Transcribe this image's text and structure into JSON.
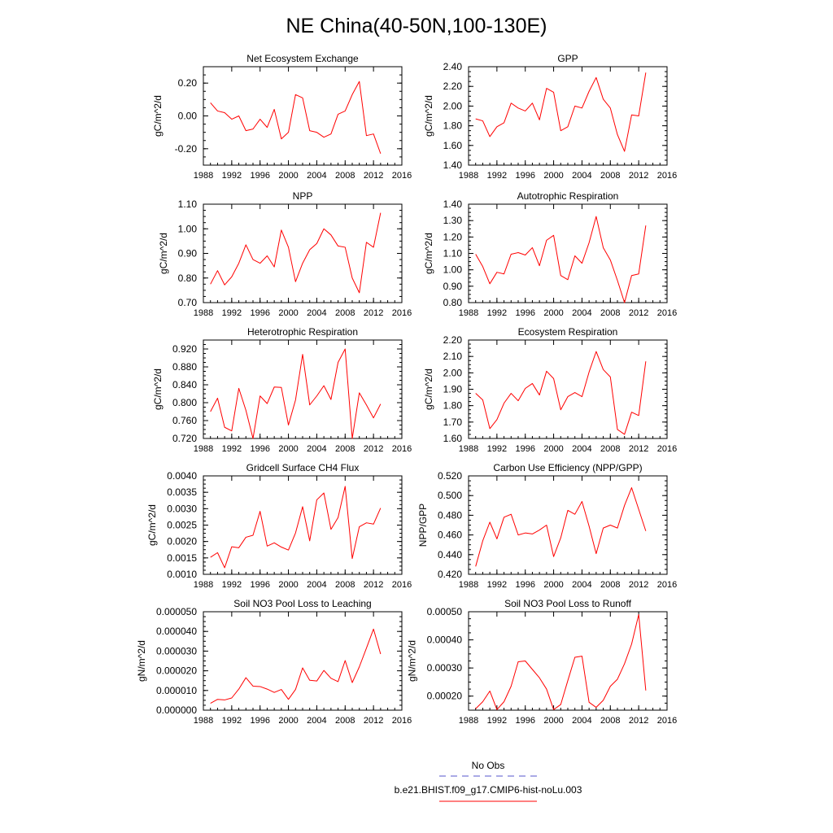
{
  "figure": {
    "title": "NE China(40-50N,100-130E)",
    "legend": {
      "obs_label": "No Obs",
      "obs_color": "#5555cc",
      "model_label": "b.e21.BHIST.f09_g17.CMIP6-hist-noLu.003",
      "model_color": "#ff0000"
    }
  },
  "chart_data": [
    {
      "type": "line",
      "title": "Net Ecosystem Exchange",
      "xlabel": "",
      "ylabel": "gC/m^2/d",
      "xlim": [
        1988,
        2016
      ],
      "ylim": [
        -0.3,
        0.3
      ],
      "xticks": [
        "1988",
        "1992",
        "1996",
        "2000",
        "2004",
        "2008",
        "2012",
        "2016"
      ],
      "yticks": [
        "-0.20",
        "0.00",
        "0.20"
      ],
      "ytick_values": [
        -0.2,
        0.0,
        0.2
      ],
      "grid": false,
      "legend": "bottom-center",
      "x": [
        1989,
        1990,
        1991,
        1992,
        1993,
        1994,
        1995,
        1996,
        1997,
        1998,
        1999,
        2000,
        2001,
        2002,
        2003,
        2004,
        2005,
        2006,
        2007,
        2008,
        2009,
        2010,
        2011,
        2012,
        2013
      ],
      "series": [
        {
          "name": "b.e21.BHIST.f09_g17.CMIP6-hist-noLu.003",
          "color": "#ff0000",
          "values": [
            0.08,
            0.03,
            0.02,
            -0.02,
            0.0,
            -0.09,
            -0.08,
            -0.02,
            -0.07,
            0.04,
            -0.14,
            -0.1,
            0.13,
            0.11,
            -0.09,
            -0.1,
            -0.13,
            -0.11,
            0.01,
            0.03,
            0.13,
            0.21,
            -0.12,
            -0.11,
            -0.23
          ]
        }
      ]
    },
    {
      "type": "line",
      "title": "GPP",
      "xlabel": "",
      "ylabel": "gC/m^2/d",
      "xlim": [
        1988,
        2016
      ],
      "ylim": [
        1.4,
        2.4
      ],
      "xticks": [
        "1988",
        "1992",
        "1996",
        "2000",
        "2004",
        "2008",
        "2012",
        "2016"
      ],
      "yticks": [
        "1.40",
        "1.60",
        "1.80",
        "2.00",
        "2.20",
        "2.40"
      ],
      "ytick_values": [
        1.4,
        1.6,
        1.8,
        2.0,
        2.2,
        2.4
      ],
      "grid": false,
      "legend": "bottom-center",
      "x": [
        1989,
        1990,
        1991,
        1992,
        1993,
        1994,
        1995,
        1996,
        1997,
        1998,
        1999,
        2000,
        2001,
        2002,
        2003,
        2004,
        2005,
        2006,
        2007,
        2008,
        2009,
        2010,
        2011,
        2012,
        2013
      ],
      "series": [
        {
          "name": "b.e21.BHIST.f09_g17.CMIP6-hist-noLu.003",
          "color": "#ff0000",
          "values": [
            1.87,
            1.85,
            1.69,
            1.79,
            1.83,
            2.03,
            1.98,
            1.95,
            2.03,
            1.86,
            2.18,
            2.14,
            1.75,
            1.79,
            2.0,
            1.98,
            2.15,
            2.29,
            2.07,
            1.98,
            1.71,
            1.54,
            1.91,
            1.9,
            2.34
          ]
        }
      ]
    },
    {
      "type": "line",
      "title": "NPP",
      "xlabel": "",
      "ylabel": "gC/m^2/d",
      "xlim": [
        1988,
        2016
      ],
      "ylim": [
        0.7,
        1.1
      ],
      "xticks": [
        "1988",
        "1992",
        "1996",
        "2000",
        "2004",
        "2008",
        "2012",
        "2016"
      ],
      "yticks": [
        "0.70",
        "0.80",
        "0.90",
        "1.00",
        "1.10"
      ],
      "ytick_values": [
        0.7,
        0.8,
        0.9,
        1.0,
        1.1
      ],
      "grid": false,
      "legend": "bottom-center",
      "x": [
        1989,
        1990,
        1991,
        1992,
        1993,
        1994,
        1995,
        1996,
        1997,
        1998,
        1999,
        2000,
        2001,
        2002,
        2003,
        2004,
        2005,
        2006,
        2007,
        2008,
        2009,
        2010,
        2011,
        2012,
        2013
      ],
      "series": [
        {
          "name": "b.e21.BHIST.f09_g17.CMIP6-hist-noLu.003",
          "color": "#ff0000",
          "values": [
            0.775,
            0.83,
            0.772,
            0.805,
            0.86,
            0.935,
            0.875,
            0.86,
            0.89,
            0.845,
            0.995,
            0.925,
            0.785,
            0.86,
            0.915,
            0.94,
            1.0,
            0.975,
            0.93,
            0.925,
            0.8,
            0.74,
            0.945,
            0.925,
            1.065
          ]
        }
      ]
    },
    {
      "type": "line",
      "title": "Autotrophic Respiration",
      "xlabel": "",
      "ylabel": "gC/m^2/d",
      "xlim": [
        1988,
        2016
      ],
      "ylim": [
        0.8,
        1.4
      ],
      "xticks": [
        "1988",
        "1992",
        "1996",
        "2000",
        "2004",
        "2008",
        "2012",
        "2016"
      ],
      "yticks": [
        "0.80",
        "0.90",
        "1.00",
        "1.10",
        "1.20",
        "1.30",
        "1.40"
      ],
      "ytick_values": [
        0.8,
        0.9,
        1.0,
        1.1,
        1.2,
        1.3,
        1.4
      ],
      "grid": false,
      "legend": "bottom-center",
      "x": [
        1989,
        1990,
        1991,
        1992,
        1993,
        1994,
        1995,
        1996,
        1997,
        1998,
        1999,
        2000,
        2001,
        2002,
        2003,
        2004,
        2005,
        2006,
        2007,
        2008,
        2009,
        2010,
        2011,
        2012,
        2013
      ],
      "series": [
        {
          "name": "b.e21.BHIST.f09_g17.CMIP6-hist-noLu.003",
          "color": "#ff0000",
          "values": [
            1.095,
            1.02,
            0.915,
            0.985,
            0.975,
            1.095,
            1.105,
            1.09,
            1.135,
            1.025,
            1.18,
            1.21,
            0.965,
            0.94,
            1.085,
            1.04,
            1.165,
            1.325,
            1.135,
            1.06,
            0.935,
            0.8,
            0.965,
            0.975,
            1.27
          ]
        }
      ]
    },
    {
      "type": "line",
      "title": "Heterotrophic Respiration",
      "xlabel": "",
      "ylabel": "gC/m^2/d",
      "xlim": [
        1988,
        2016
      ],
      "ylim": [
        0.72,
        0.94
      ],
      "xticks": [
        "1988",
        "1992",
        "1996",
        "2000",
        "2004",
        "2008",
        "2012",
        "2016"
      ],
      "yticks": [
        "0.720",
        "0.760",
        "0.800",
        "0.840",
        "0.880",
        "0.920"
      ],
      "ytick_values": [
        0.72,
        0.76,
        0.8,
        0.84,
        0.88,
        0.92
      ],
      "grid": false,
      "legend": "bottom-center",
      "x": [
        1989,
        1990,
        1991,
        1992,
        1993,
        1994,
        1995,
        1996,
        1997,
        1998,
        1999,
        2000,
        2001,
        2002,
        2003,
        2004,
        2005,
        2006,
        2007,
        2008,
        2009,
        2010,
        2011,
        2012,
        2013
      ],
      "series": [
        {
          "name": "b.e21.BHIST.f09_g17.CMIP6-hist-noLu.003",
          "color": "#ff0000",
          "values": [
            0.78,
            0.81,
            0.745,
            0.737,
            0.832,
            0.783,
            0.72,
            0.815,
            0.798,
            0.835,
            0.834,
            0.75,
            0.806,
            0.908,
            0.795,
            0.815,
            0.838,
            0.807,
            0.89,
            0.92,
            0.72,
            0.822,
            0.795,
            0.766,
            0.797
          ]
        }
      ]
    },
    {
      "type": "line",
      "title": "Ecosystem Respiration",
      "xlabel": "",
      "ylabel": "gC/m^2/d",
      "xlim": [
        1988,
        2016
      ],
      "ylim": [
        1.6,
        2.2
      ],
      "xticks": [
        "1988",
        "1992",
        "1996",
        "2000",
        "2004",
        "2008",
        "2012",
        "2016"
      ],
      "yticks": [
        "1.60",
        "1.70",
        "1.80",
        "1.90",
        "2.00",
        "2.10",
        "2.20"
      ],
      "ytick_values": [
        1.6,
        1.7,
        1.8,
        1.9,
        2.0,
        2.1,
        2.2
      ],
      "grid": false,
      "legend": "bottom-center",
      "x": [
        1989,
        1990,
        1991,
        1992,
        1993,
        1994,
        1995,
        1996,
        1997,
        1998,
        1999,
        2000,
        2001,
        2002,
        2003,
        2004,
        2005,
        2006,
        2007,
        2008,
        2009,
        2010,
        2011,
        2012,
        2013
      ],
      "series": [
        {
          "name": "b.e21.BHIST.f09_g17.CMIP6-hist-noLu.003",
          "color": "#ff0000",
          "values": [
            1.875,
            1.835,
            1.66,
            1.715,
            1.815,
            1.875,
            1.83,
            1.905,
            1.935,
            1.865,
            2.01,
            1.965,
            1.775,
            1.855,
            1.88,
            1.855,
            2.005,
            2.13,
            2.02,
            1.975,
            1.655,
            1.625,
            1.76,
            1.74,
            2.07
          ]
        }
      ]
    },
    {
      "type": "line",
      "title": "Gridcell Surface CH4 Flux",
      "xlabel": "",
      "ylabel": "gC/m^2/d",
      "xlim": [
        1988,
        2016
      ],
      "ylim": [
        0.001,
        0.004
      ],
      "xticks": [
        "1988",
        "1992",
        "1996",
        "2000",
        "2004",
        "2008",
        "2012",
        "2016"
      ],
      "yticks": [
        "0.0010",
        "0.0015",
        "0.0020",
        "0.0025",
        "0.0030",
        "0.0035",
        "0.0040"
      ],
      "ytick_values": [
        0.001,
        0.0015,
        0.002,
        0.0025,
        0.003,
        0.0035,
        0.004
      ],
      "grid": false,
      "legend": "bottom-center",
      "x": [
        1989,
        1990,
        1991,
        1992,
        1993,
        1994,
        1995,
        1996,
        1997,
        1998,
        1999,
        2000,
        2001,
        2002,
        2003,
        2004,
        2005,
        2006,
        2007,
        2008,
        2009,
        2010,
        2011,
        2012,
        2013
      ],
      "series": [
        {
          "name": "b.e21.BHIST.f09_g17.CMIP6-hist-noLu.003",
          "color": "#ff0000",
          "values": [
            0.00152,
            0.00166,
            0.0012,
            0.00184,
            0.00181,
            0.00213,
            0.00219,
            0.00292,
            0.00186,
            0.00196,
            0.00183,
            0.00174,
            0.00226,
            0.00306,
            0.00202,
            0.00327,
            0.00348,
            0.00237,
            0.00273,
            0.00368,
            0.00148,
            0.00245,
            0.00257,
            0.00253,
            0.00302
          ]
        }
      ]
    },
    {
      "type": "line",
      "title": "Carbon Use Efficiency (NPP/GPP)",
      "xlabel": "",
      "ylabel": "NPP/GPP",
      "xlim": [
        1988,
        2016
      ],
      "ylim": [
        0.42,
        0.52
      ],
      "xticks": [
        "1988",
        "1992",
        "1996",
        "2000",
        "2004",
        "2008",
        "2012",
        "2016"
      ],
      "yticks": [
        "0.420",
        "0.440",
        "0.460",
        "0.480",
        "0.500",
        "0.520"
      ],
      "ytick_values": [
        0.42,
        0.44,
        0.46,
        0.48,
        0.5,
        0.52
      ],
      "grid": false,
      "legend": "bottom-center",
      "x": [
        1989,
        1990,
        1991,
        1992,
        1993,
        1994,
        1995,
        1996,
        1997,
        1998,
        1999,
        2000,
        2001,
        2002,
        2003,
        2004,
        2005,
        2006,
        2007,
        2008,
        2009,
        2010,
        2011,
        2012,
        2013
      ],
      "series": [
        {
          "name": "b.e21.BHIST.f09_g17.CMIP6-hist-noLu.003",
          "color": "#ff0000",
          "values": [
            0.428,
            0.454,
            0.473,
            0.456,
            0.478,
            0.481,
            0.46,
            0.462,
            0.461,
            0.465,
            0.47,
            0.438,
            0.457,
            0.485,
            0.481,
            0.494,
            0.469,
            0.441,
            0.467,
            0.47,
            0.467,
            0.49,
            0.508,
            0.486,
            0.464
          ]
        }
      ]
    },
    {
      "type": "line",
      "title": "Soil NO3 Pool Loss to Leaching",
      "xlabel": "",
      "ylabel": "gN/m^2/d",
      "xlim": [
        1988,
        2016
      ],
      "ylim": [
        0.0,
        5e-05
      ],
      "xticks": [
        "1988",
        "1992",
        "1996",
        "2000",
        "2004",
        "2008",
        "2012",
        "2016"
      ],
      "yticks": [
        "0.000000",
        "0.000010",
        "0.000020",
        "0.000030",
        "0.000040",
        "0.000050"
      ],
      "ytick_values": [
        0.0,
        1e-05,
        2e-05,
        3e-05,
        4e-05,
        5e-05
      ],
      "grid": false,
      "legend": "bottom-center",
      "x": [
        1989,
        1990,
        1991,
        1992,
        1993,
        1994,
        1995,
        1996,
        1997,
        1998,
        1999,
        2000,
        2001,
        2002,
        2003,
        2004,
        2005,
        2006,
        2007,
        2008,
        2009,
        2010,
        2011,
        2012,
        2013
      ],
      "series": [
        {
          "name": "b.e21.BHIST.f09_g17.CMIP6-hist-noLu.003",
          "color": "#ff0000",
          "values": [
            3.5e-06,
            5.5e-06,
            5.2e-06,
            6.2e-06,
            1.07e-05,
            1.65e-05,
            1.22e-05,
            1.2e-05,
            1.07e-05,
            9e-06,
            1.05e-05,
            5.5e-06,
            1.05e-05,
            2.15e-05,
            1.52e-05,
            1.48e-05,
            2.02e-05,
            1.62e-05,
            1.45e-05,
            2.52e-05,
            1.4e-05,
            2.2e-05,
            3.15e-05,
            4.12e-05,
            2.85e-05
          ]
        }
      ]
    },
    {
      "type": "line",
      "title": "Soil NO3 Pool Loss to Runoff",
      "xlabel": "",
      "ylabel": "gN/m^2/d",
      "xlim": [
        1988,
        2016
      ],
      "ylim": [
        0.00015,
        0.0005
      ],
      "xticks": [
        "1988",
        "1992",
        "1996",
        "2000",
        "2004",
        "2008",
        "2012",
        "2016"
      ],
      "yticks": [
        "0.00020",
        "0.00030",
        "0.00040",
        "0.00050"
      ],
      "ytick_values": [
        0.0002,
        0.0003,
        0.0004,
        0.0005
      ],
      "grid": false,
      "legend": "bottom-center",
      "x": [
        1989,
        1990,
        1991,
        1992,
        1993,
        1994,
        1995,
        1996,
        1997,
        1998,
        1999,
        2000,
        2001,
        2002,
        2003,
        2004,
        2005,
        2006,
        2007,
        2008,
        2009,
        2010,
        2011,
        2012,
        2013
      ],
      "series": [
        {
          "name": "b.e21.BHIST.f09_g17.CMIP6-hist-noLu.003",
          "color": "#ff0000",
          "values": [
            0.000155,
            0.00018,
            0.000218,
            0.000152,
            0.00018,
            0.000235,
            0.000322,
            0.000325,
            0.000295,
            0.000265,
            0.000225,
            0.000152,
            0.00017,
            0.000255,
            0.000338,
            0.000342,
            0.000178,
            0.00016,
            0.000185,
            0.000235,
            0.00026,
            0.000315,
            0.000385,
            0.00049,
            0.00022
          ]
        }
      ]
    }
  ]
}
